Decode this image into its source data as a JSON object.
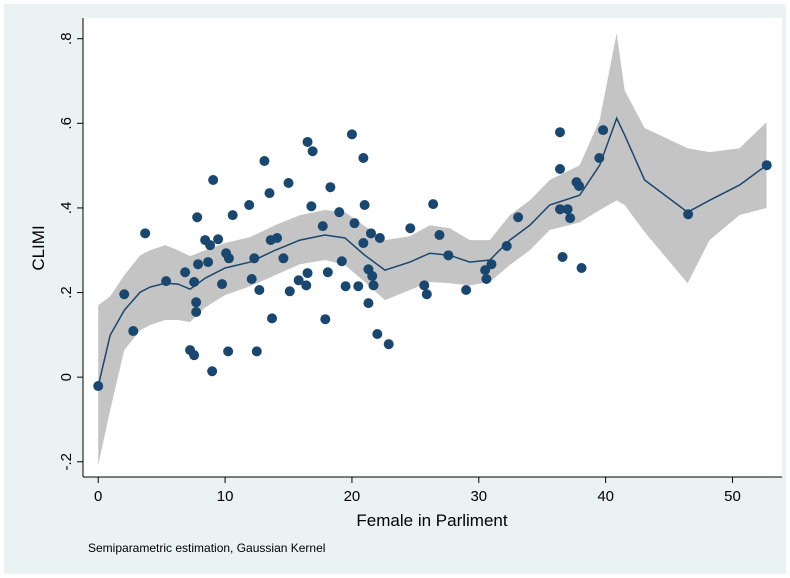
{
  "chart_data": {
    "type": "scatter",
    "ylabel": "CLIMI",
    "xlabel": "Female in Parliment",
    "note": "Semiparametric estimation, Gaussian Kernel",
    "xlim": [
      -1.2,
      53.9
    ],
    "ylim": [
      -0.236,
      0.849
    ],
    "xticks": [
      0,
      10,
      20,
      30,
      40,
      50
    ],
    "yticks": [
      {
        "value": -0.2,
        "label": "-.2"
      },
      0,
      {
        "value": 0.2,
        "label": ".2"
      },
      {
        "value": 0.4,
        "label": ".4"
      },
      {
        "value": 0.6,
        "label": ".6"
      },
      {
        "value": 0.8,
        "label": ".8"
      }
    ],
    "grid": false,
    "points": {
      "color": "#1a476f",
      "x": [
        0,
        2.05,
        2.76,
        3.7,
        5.35,
        6.85,
        7.24,
        7.56,
        7.56,
        7.72,
        7.72,
        7.8,
        7.87,
        8.43,
        8.66,
        8.82,
        8.98,
        9.06,
        9.45,
        9.76,
        10.08,
        10.3,
        10.24,
        10.6,
        11.9,
        12.1,
        12.3,
        12.5,
        12.7,
        13.1,
        13.5,
        13.6,
        13.7,
        14.1,
        14.6,
        15.0,
        15.1,
        15.8,
        16.4,
        16.5,
        16.5,
        16.8,
        16.9,
        17.7,
        17.9,
        18.1,
        18.3,
        19.0,
        19.2,
        19.5,
        20.0,
        20.2,
        20.5,
        20.9,
        20.9,
        21.0,
        21.3,
        21.3,
        21.5,
        21.6,
        21.7,
        22.2,
        22.0,
        22.9,
        24.6,
        25.7,
        25.9,
        26.4,
        26.9,
        27.6,
        29.0,
        30.5,
        30.6,
        31.0,
        32.2,
        33.1,
        36.4,
        36.4,
        36.4,
        36.6,
        37.0,
        37.2,
        37.7,
        37.9,
        38.1,
        39.5,
        39.8,
        46.5,
        52.7
      ],
      "y": [
        -0.021,
        0.196,
        0.109,
        0.34,
        0.227,
        0.248,
        0.064,
        0.052,
        0.225,
        0.177,
        0.154,
        0.378,
        0.267,
        0.324,
        0.272,
        0.312,
        0.014,
        0.466,
        0.326,
        0.22,
        0.293,
        0.281,
        0.061,
        0.383,
        0.407,
        0.232,
        0.281,
        0.061,
        0.206,
        0.511,
        0.435,
        0.324,
        0.139,
        0.329,
        0.281,
        0.459,
        0.203,
        0.229,
        0.217,
        0.556,
        0.246,
        0.404,
        0.534,
        0.357,
        0.137,
        0.248,
        0.449,
        0.39,
        0.274,
        0.215,
        0.574,
        0.364,
        0.215,
        0.317,
        0.518,
        0.407,
        0.255,
        0.175,
        0.34,
        0.239,
        0.217,
        0.329,
        0.102,
        0.078,
        0.352,
        0.217,
        0.196,
        0.409,
        0.336,
        0.288,
        0.206,
        0.253,
        0.232,
        0.267,
        0.31,
        0.378,
        0.579,
        0.492,
        0.397,
        0.284,
        0.397,
        0.376,
        0.461,
        0.452,
        0.258,
        0.518,
        0.584,
        0.385,
        0.501
      ]
    },
    "fit": {
      "color": "#1a476f",
      "band_color": "#c4c4c4",
      "x": [
        0,
        0.94,
        2.05,
        3.31,
        4.09,
        5.28,
        6.3,
        7.24,
        8.43,
        10.0,
        11.97,
        13.94,
        15.9,
        17.87,
        19.45,
        21.02,
        22.6,
        24.57,
        26.14,
        27.72,
        29.29,
        30.87,
        32.44,
        34.02,
        35.59,
        37.95,
        39.53,
        40.87,
        41.5,
        43.07,
        46.46,
        48.19,
        50.55,
        52.68
      ],
      "y": [
        -0.021,
        0.099,
        0.158,
        0.201,
        0.213,
        0.222,
        0.22,
        0.208,
        0.234,
        0.258,
        0.272,
        0.3,
        0.324,
        0.336,
        0.329,
        0.288,
        0.253,
        0.272,
        0.293,
        0.288,
        0.272,
        0.277,
        0.324,
        0.359,
        0.407,
        0.43,
        0.501,
        0.612,
        0.572,
        0.466,
        0.39,
        0.418,
        0.454,
        0.501
      ],
      "upper": [
        0.17,
        0.191,
        0.241,
        0.288,
        0.3,
        0.312,
        0.3,
        0.286,
        0.3,
        0.317,
        0.331,
        0.359,
        0.383,
        0.395,
        0.39,
        0.357,
        0.324,
        0.333,
        0.359,
        0.352,
        0.324,
        0.324,
        0.383,
        0.418,
        0.466,
        0.501,
        0.608,
        0.813,
        0.678,
        0.589,
        0.541,
        0.532,
        0.541,
        0.603
      ],
      "lower": [
        -0.208,
        -0.078,
        0.064,
        0.111,
        0.123,
        0.135,
        0.135,
        0.13,
        0.165,
        0.194,
        0.215,
        0.241,
        0.267,
        0.277,
        0.265,
        0.225,
        0.182,
        0.206,
        0.225,
        0.222,
        0.217,
        0.225,
        0.265,
        0.3,
        0.348,
        0.366,
        0.395,
        0.418,
        0.407,
        0.343,
        0.222,
        0.324,
        0.383,
        0.4
      ]
    }
  }
}
